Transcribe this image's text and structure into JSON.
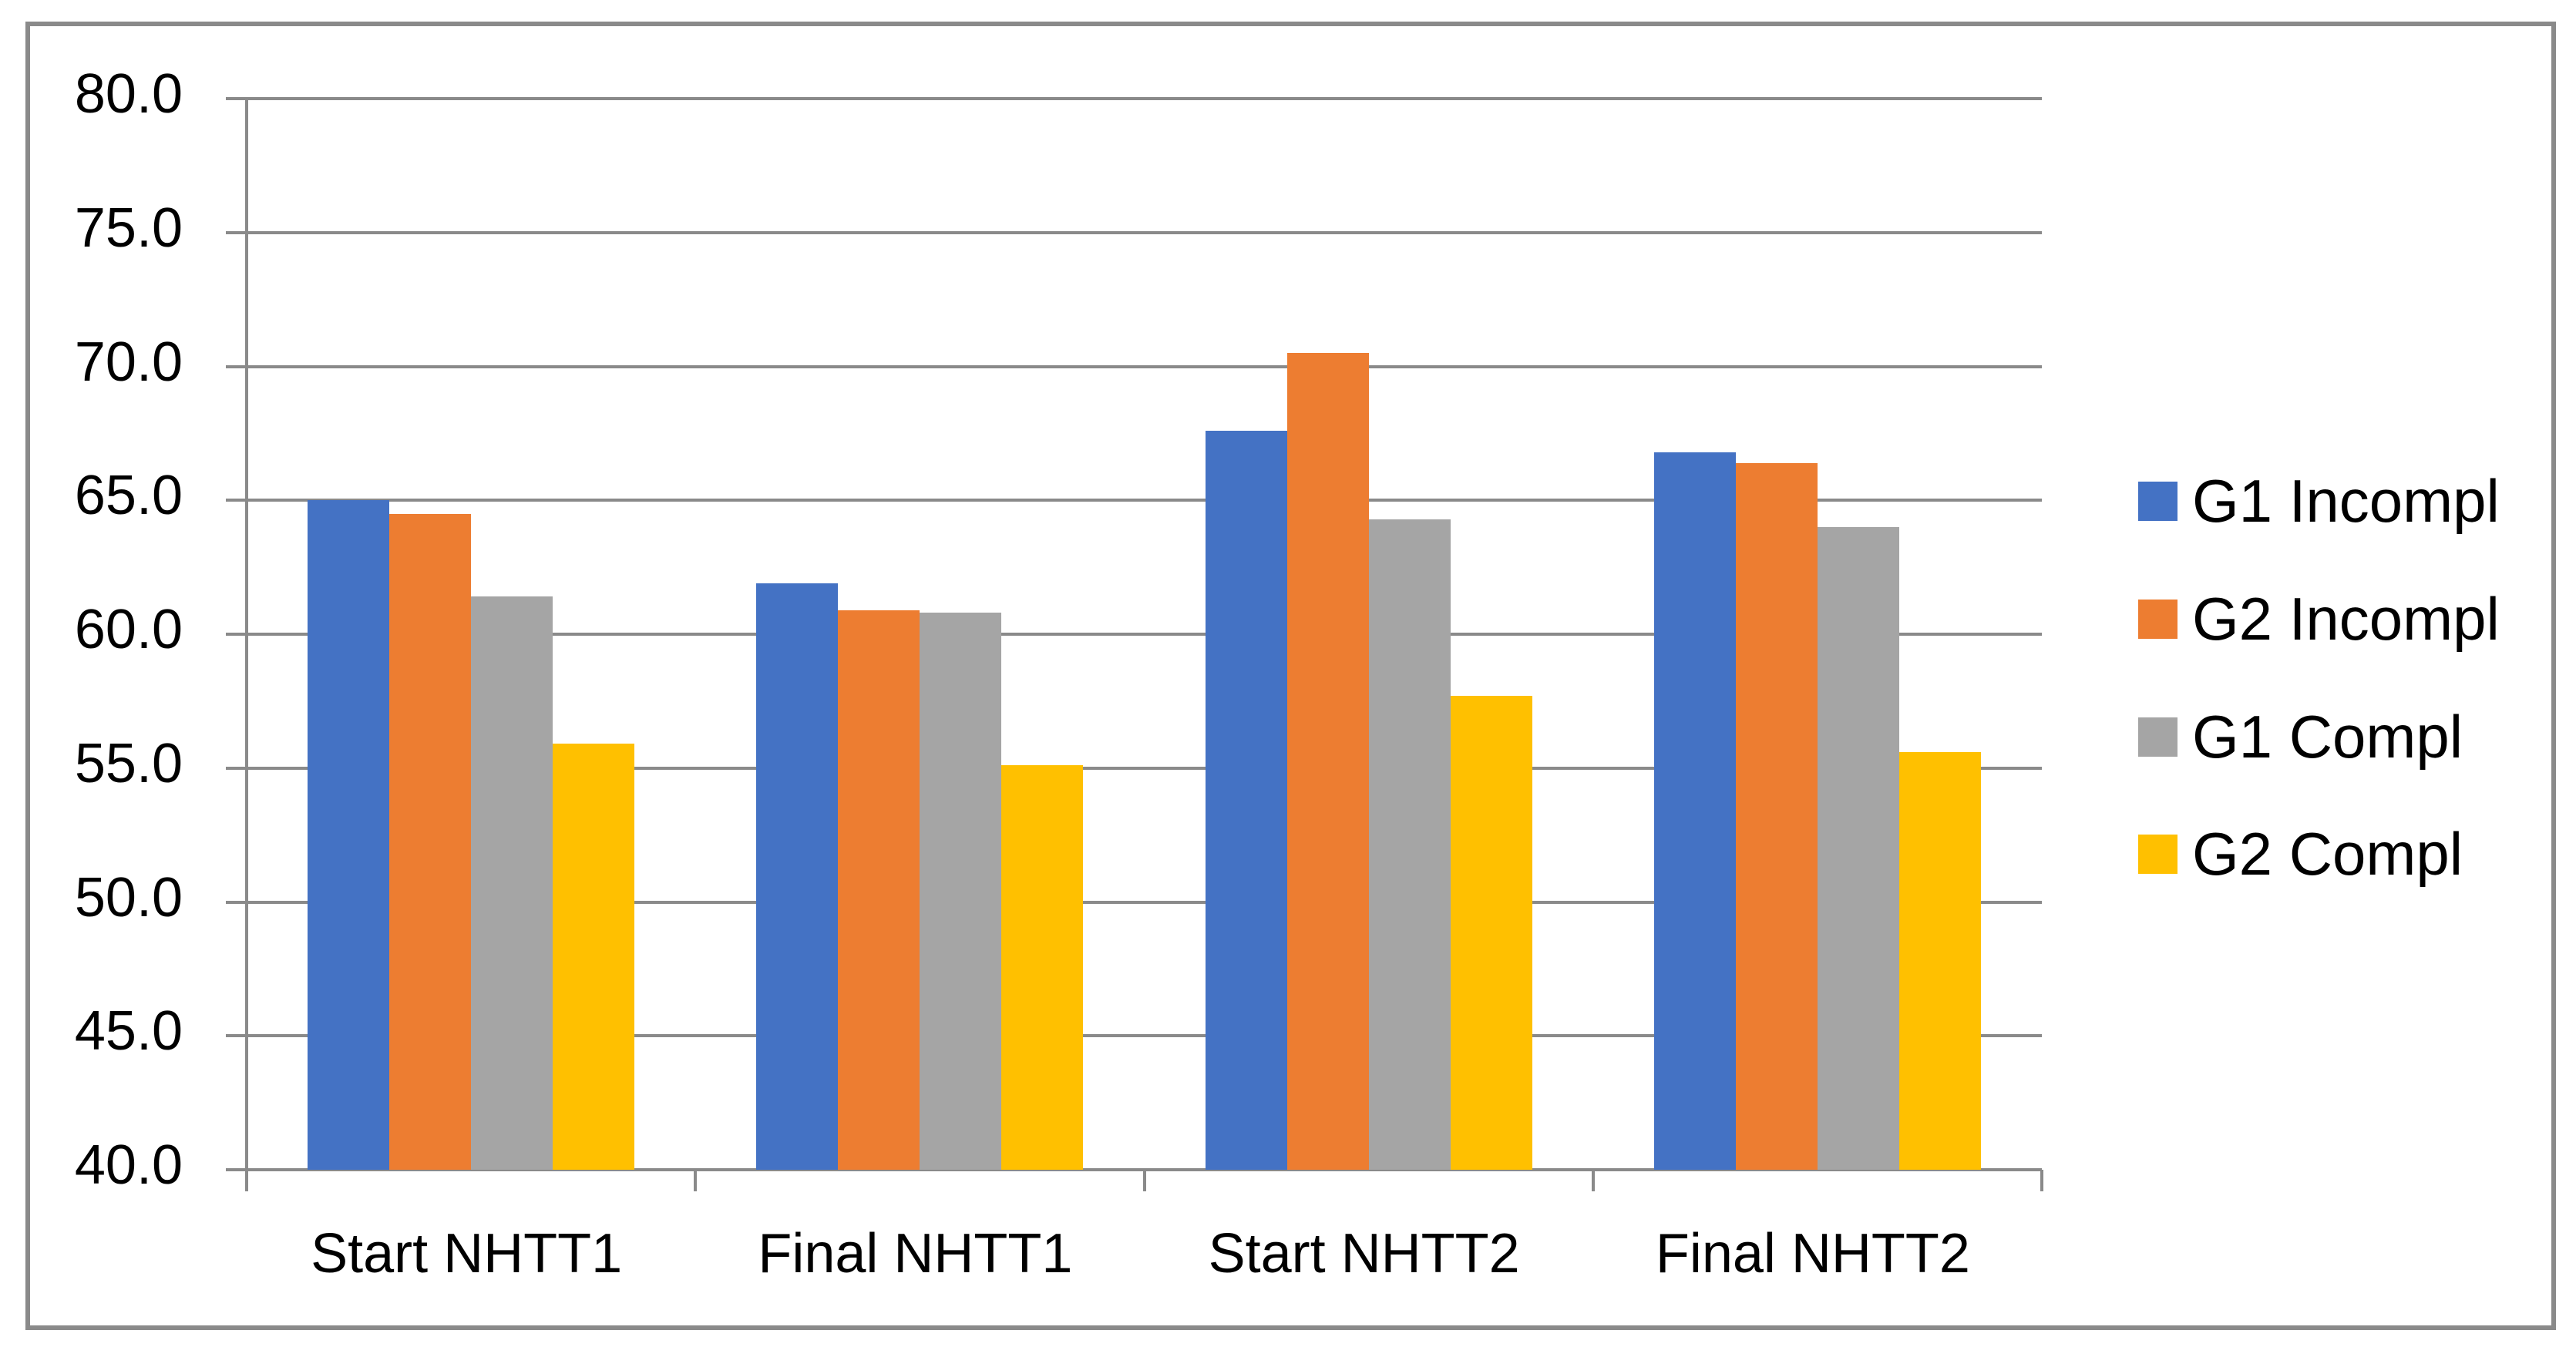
{
  "chart_data": {
    "type": "bar",
    "title": "",
    "categories": [
      "Start NHTT1",
      "Final NHTT1",
      "Start NHTT2",
      "Final NHTT2"
    ],
    "series": [
      {
        "name": "G1 Incompl",
        "color": "#4472C4",
        "values": [
          65.0,
          61.9,
          67.6,
          66.8
        ]
      },
      {
        "name": "G2 Incompl",
        "color": "#ED7D31",
        "values": [
          64.5,
          60.9,
          70.5,
          66.4
        ]
      },
      {
        "name": "G1 Compl",
        "color": "#A5A5A5",
        "values": [
          61.4,
          60.8,
          64.3,
          64.0
        ]
      },
      {
        "name": "G2 Compl",
        "color": "#FFC000",
        "values": [
          55.9,
          55.1,
          57.7,
          55.6
        ]
      }
    ],
    "ylim": [
      40,
      80
    ],
    "ytick_step": 5,
    "ytick_labels": [
      "40.0",
      "45.0",
      "50.0",
      "55.0",
      "60.0",
      "65.0",
      "70.0",
      "75.0",
      "80.0"
    ],
    "xlabel": "",
    "ylabel": "",
    "grid": "horizontal",
    "legend_position": "right"
  },
  "colors": {
    "grid": "#8a8a8a",
    "axis": "#8a8a8a",
    "frame": "#8a8a8a",
    "text": "#000000",
    "background": "#ffffff"
  }
}
